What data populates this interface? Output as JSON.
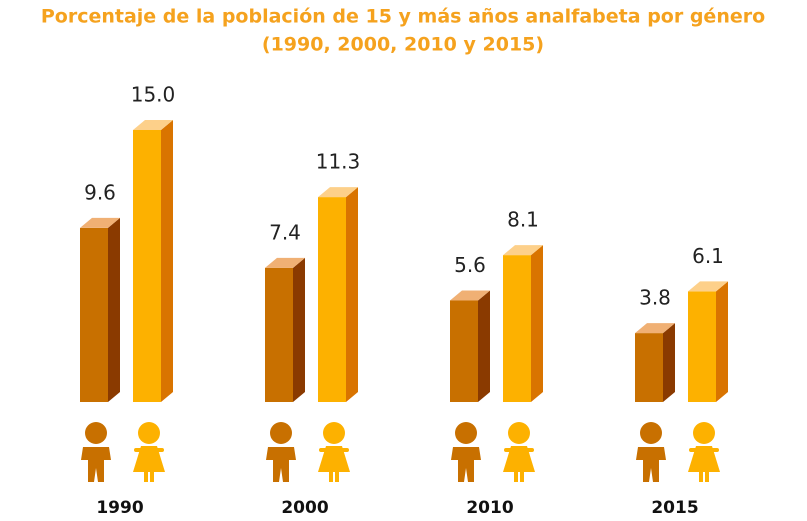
{
  "chart_data": {
    "type": "bar3d",
    "title": "Porcentaje de la población de 15 y más años analfabeta por género",
    "subtitle": "(1990, 2000, 2010 y 2015)",
    "categories": [
      "1990",
      "2000",
      "2010",
      "2015"
    ],
    "series": [
      {
        "color": "#c87000",
        "values": [
          9.6,
          7.4,
          5.6,
          3.8
        ],
        "value_labels": [
          "9.6",
          "7.4",
          "5.6",
          "3.8"
        ]
      },
      {
        "color": "#fdb100",
        "values": [
          15,
          11.3,
          8.1,
          6.1
        ],
        "value_labels": [
          "15.0",
          "11.3",
          "8.1",
          "6.1"
        ]
      }
    ]
  }
}
